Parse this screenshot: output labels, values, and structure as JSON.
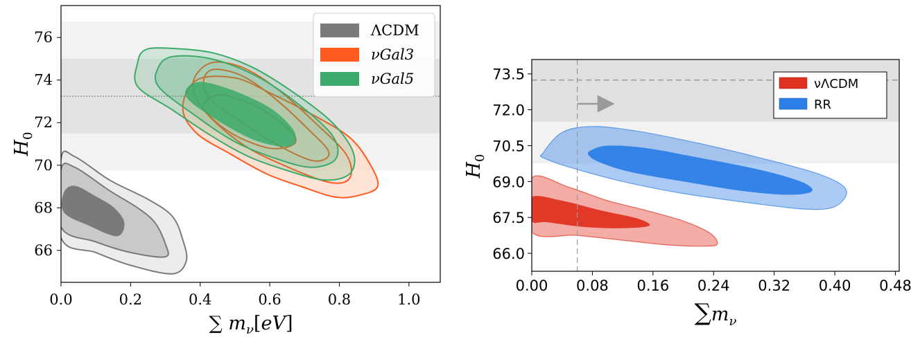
{
  "chart_data": [
    {
      "type": "contour",
      "xlabel": "∑ m_ν[eV]",
      "ylabel": "H_0",
      "xlim": [
        0.0,
        1.09
      ],
      "ylim": [
        64.5,
        77.5
      ],
      "xticks": [
        "0.0",
        "0.2",
        "0.4",
        "0.6",
        "0.8",
        "1.0"
      ],
      "xtick_values": [
        0.0,
        0.2,
        0.4,
        0.6,
        0.8,
        1.0
      ],
      "yticks": [
        "66",
        "68",
        "70",
        "72",
        "74",
        "76"
      ],
      "ytick_values": [
        66,
        68,
        70,
        72,
        74,
        76
      ],
      "legend_position": "top-right",
      "reference": {
        "line": 73.24,
        "band_inner": [
          71.5,
          75.0
        ],
        "band_outer": [
          69.75,
          76.75
        ]
      },
      "series": [
        {
          "name": "ΛCDM",
          "color": "#7a7a7a",
          "contours": [
            {
              "level": "outer",
              "points": [
                [
                  0.0,
                  66.6
                ],
                [
                  0.1,
                  65.9
                ],
                [
                  0.2,
                  65.3
                ],
                [
                  0.32,
                  64.9
                ],
                [
                  0.36,
                  65.5
                ],
                [
                  0.35,
                  66.5
                ],
                [
                  0.32,
                  67.6
                ],
                [
                  0.25,
                  68.4
                ],
                [
                  0.14,
                  69.3
                ],
                [
                  0.04,
                  70.4
                ],
                [
                  0.0,
                  70.3
                ]
              ]
            },
            {
              "level": "middle",
              "points": [
                [
                  0.0,
                  67.1
                ],
                [
                  0.1,
                  66.4
                ],
                [
                  0.2,
                  65.9
                ],
                [
                  0.3,
                  65.7
                ],
                [
                  0.3,
                  66.3
                ],
                [
                  0.27,
                  67.3
                ],
                [
                  0.22,
                  68.0
                ],
                [
                  0.14,
                  68.8
                ],
                [
                  0.04,
                  69.9
                ],
                [
                  0.0,
                  69.8
                ]
              ]
            },
            {
              "level": "inner",
              "points": [
                [
                  0.01,
                  67.8
                ],
                [
                  0.08,
                  67.2
                ],
                [
                  0.16,
                  66.7
                ],
                [
                  0.18,
                  67.3
                ],
                [
                  0.15,
                  68.0
                ],
                [
                  0.1,
                  68.5
                ],
                [
                  0.04,
                  69.0
                ],
                [
                  0.01,
                  68.7
                ]
              ]
            }
          ]
        },
        {
          "name": "νGal3",
          "color": "#ff5a1f",
          "contours": [
            {
              "level": "outer",
              "points": [
                [
                  0.39,
                  71.5
                ],
                [
                  0.49,
                  70.5
                ],
                [
                  0.59,
                  69.6
                ],
                [
                  0.69,
                  69.0
                ],
                [
                  0.79,
                  68.5
                ],
                [
                  0.86,
                  68.6
                ],
                [
                  0.91,
                  69.0
                ],
                [
                  0.89,
                  70.0
                ],
                [
                  0.83,
                  71.3
                ],
                [
                  0.72,
                  72.4
                ],
                [
                  0.6,
                  73.4
                ],
                [
                  0.5,
                  74.1
                ],
                [
                  0.39,
                  74.0
                ],
                [
                  0.35,
                  72.7
                ]
              ]
            },
            {
              "level": "middle",
              "points": [
                [
                  0.41,
                  72.6
                ],
                [
                  0.52,
                  71.0
                ],
                [
                  0.64,
                  70.0
                ],
                [
                  0.77,
                  69.2
                ],
                [
                  0.83,
                  69.4
                ],
                [
                  0.82,
                  70.5
                ],
                [
                  0.73,
                  72.0
                ],
                [
                  0.62,
                  73.6
                ],
                [
                  0.52,
                  74.6
                ],
                [
                  0.43,
                  74.8
                ],
                [
                  0.38,
                  73.9
                ]
              ]
            },
            {
              "level": "inner",
              "points": [
                [
                  0.43,
                  73.1
                ],
                [
                  0.53,
                  71.9
                ],
                [
                  0.64,
                  70.8
                ],
                [
                  0.73,
                  70.2
                ],
                [
                  0.77,
                  70.6
                ],
                [
                  0.71,
                  71.7
                ],
                [
                  0.61,
                  73.2
                ],
                [
                  0.52,
                  74.2
                ],
                [
                  0.44,
                  74.5
                ],
                [
                  0.41,
                  74.0
                ]
              ]
            },
            {
              "level": "core",
              "points": [
                [
                  0.41,
                  72.7
                ],
                [
                  0.49,
                  71.5
                ],
                [
                  0.6,
                  70.8
                ],
                [
                  0.67,
                  71.0
                ],
                [
                  0.66,
                  71.6
                ],
                [
                  0.58,
                  72.6
                ],
                [
                  0.51,
                  73.1
                ],
                [
                  0.45,
                  73.3
                ]
              ]
            }
          ]
        },
        {
          "name": "νGal5",
          "color": "#3caa6a",
          "contours": [
            {
              "level": "outer",
              "points": [
                [
                  0.22,
                  73.7
                ],
                [
                  0.32,
                  72.6
                ],
                [
                  0.43,
                  71.4
                ],
                [
                  0.54,
                  70.4
                ],
                [
                  0.66,
                  69.7
                ],
                [
                  0.76,
                  69.3
                ],
                [
                  0.83,
                  69.6
                ],
                [
                  0.84,
                  70.6
                ],
                [
                  0.78,
                  72.0
                ],
                [
                  0.67,
                  73.4
                ],
                [
                  0.55,
                  74.6
                ],
                [
                  0.43,
                  75.3
                ],
                [
                  0.3,
                  75.5
                ],
                [
                  0.24,
                  75.4
                ],
                [
                  0.22,
                  74.8
                ]
              ]
            },
            {
              "level": "middle",
              "points": [
                [
                  0.28,
                  73.7
                ],
                [
                  0.38,
                  72.4
                ],
                [
                  0.5,
                  71.1
                ],
                [
                  0.62,
                  70.3
                ],
                [
                  0.72,
                  69.9
                ],
                [
                  0.79,
                  70.3
                ],
                [
                  0.78,
                  71.4
                ],
                [
                  0.68,
                  72.9
                ],
                [
                  0.56,
                  74.2
                ],
                [
                  0.43,
                  75.0
                ],
                [
                  0.32,
                  75.1
                ],
                [
                  0.28,
                  74.6
                ]
              ]
            },
            {
              "level": "inner",
              "points": [
                [
                  0.36,
                  73.2
                ],
                [
                  0.46,
                  72.0
                ],
                [
                  0.57,
                  71.1
                ],
                [
                  0.66,
                  70.9
                ],
                [
                  0.67,
                  71.6
                ],
                [
                  0.6,
                  72.7
                ],
                [
                  0.48,
                  73.6
                ],
                [
                  0.39,
                  73.9
                ]
              ]
            }
          ]
        }
      ]
    },
    {
      "type": "contour",
      "xlabel": "∑m_ν",
      "ylabel": "H_0",
      "xlim": [
        0.0,
        0.485
      ],
      "ylim": [
        65.25,
        74.1
      ],
      "xticks": [
        "0.00",
        "0.08",
        "0.16",
        "0.24",
        "0.32",
        "0.40",
        "0.48"
      ],
      "xtick_values": [
        0.0,
        0.08,
        0.16,
        0.24,
        0.32,
        0.4,
        0.48
      ],
      "yticks": [
        "66.0",
        "67.5",
        "69.0",
        "70.5",
        "72.0",
        "73.5"
      ],
      "ytick_values": [
        66.0,
        67.5,
        69.0,
        70.5,
        72.0,
        73.5
      ],
      "legend_position": "top-right",
      "reference": {
        "hline": 73.24,
        "band_inner": [
          71.5,
          74.1
        ],
        "band_outer": [
          69.75,
          71.5
        ],
        "vline": 0.06,
        "arrow_to": 0.105,
        "arrow_y": 72.25
      },
      "series": [
        {
          "name": "νΛCDM",
          "color": "#e03220",
          "contours": [
            {
              "level": "outer",
              "points": [
                [
                  0.0,
                  69.15
                ],
                [
                  0.05,
                  68.75
                ],
                [
                  0.1,
                  68.2
                ],
                [
                  0.15,
                  67.8
                ],
                [
                  0.2,
                  67.35
                ],
                [
                  0.235,
                  66.85
                ],
                [
                  0.245,
                  66.4
                ],
                [
                  0.23,
                  66.3
                ],
                [
                  0.18,
                  66.35
                ],
                [
                  0.12,
                  66.55
                ],
                [
                  0.06,
                  66.75
                ],
                [
                  0.0,
                  66.9
                ]
              ]
            },
            {
              "level": "inner",
              "points": [
                [
                  0.0,
                  68.35
                ],
                [
                  0.04,
                  68.2
                ],
                [
                  0.09,
                  67.8
                ],
                [
                  0.14,
                  67.45
                ],
                [
                  0.155,
                  67.15
                ],
                [
                  0.12,
                  67.05
                ],
                [
                  0.07,
                  67.1
                ],
                [
                  0.02,
                  67.3
                ],
                [
                  0.0,
                  67.35
                ]
              ]
            }
          ]
        },
        {
          "name": "RR",
          "color": "#2d7ee6",
          "contours": [
            {
              "level": "outer",
              "points": [
                [
                  0.015,
                  70.2
                ],
                [
                  0.04,
                  71.05
                ],
                [
                  0.08,
                  71.3
                ],
                [
                  0.14,
                  71.1
                ],
                [
                  0.22,
                  70.6
                ],
                [
                  0.3,
                  70.0
                ],
                [
                  0.38,
                  69.3
                ],
                [
                  0.415,
                  68.65
                ],
                [
                  0.4,
                  67.95
                ],
                [
                  0.36,
                  67.85
                ],
                [
                  0.29,
                  68.1
                ],
                [
                  0.2,
                  68.5
                ],
                [
                  0.12,
                  69.0
                ],
                [
                  0.05,
                  69.6
                ],
                [
                  0.015,
                  70.0
                ]
              ]
            },
            {
              "level": "inner",
              "points": [
                [
                  0.078,
                  70.3
                ],
                [
                  0.1,
                  70.5
                ],
                [
                  0.15,
                  70.4
                ],
                [
                  0.22,
                  70.0
                ],
                [
                  0.3,
                  69.5
                ],
                [
                  0.355,
                  69.0
                ],
                [
                  0.37,
                  68.6
                ],
                [
                  0.34,
                  68.45
                ],
                [
                  0.28,
                  68.6
                ],
                [
                  0.2,
                  69.0
                ],
                [
                  0.13,
                  69.4
                ],
                [
                  0.09,
                  69.8
                ],
                [
                  0.075,
                  70.1
                ]
              ]
            }
          ]
        }
      ]
    }
  ],
  "legend_left": [
    "ΛCDM",
    "νGal3",
    "νGal5"
  ],
  "legend_right": [
    "νΛCDM",
    "RR"
  ]
}
